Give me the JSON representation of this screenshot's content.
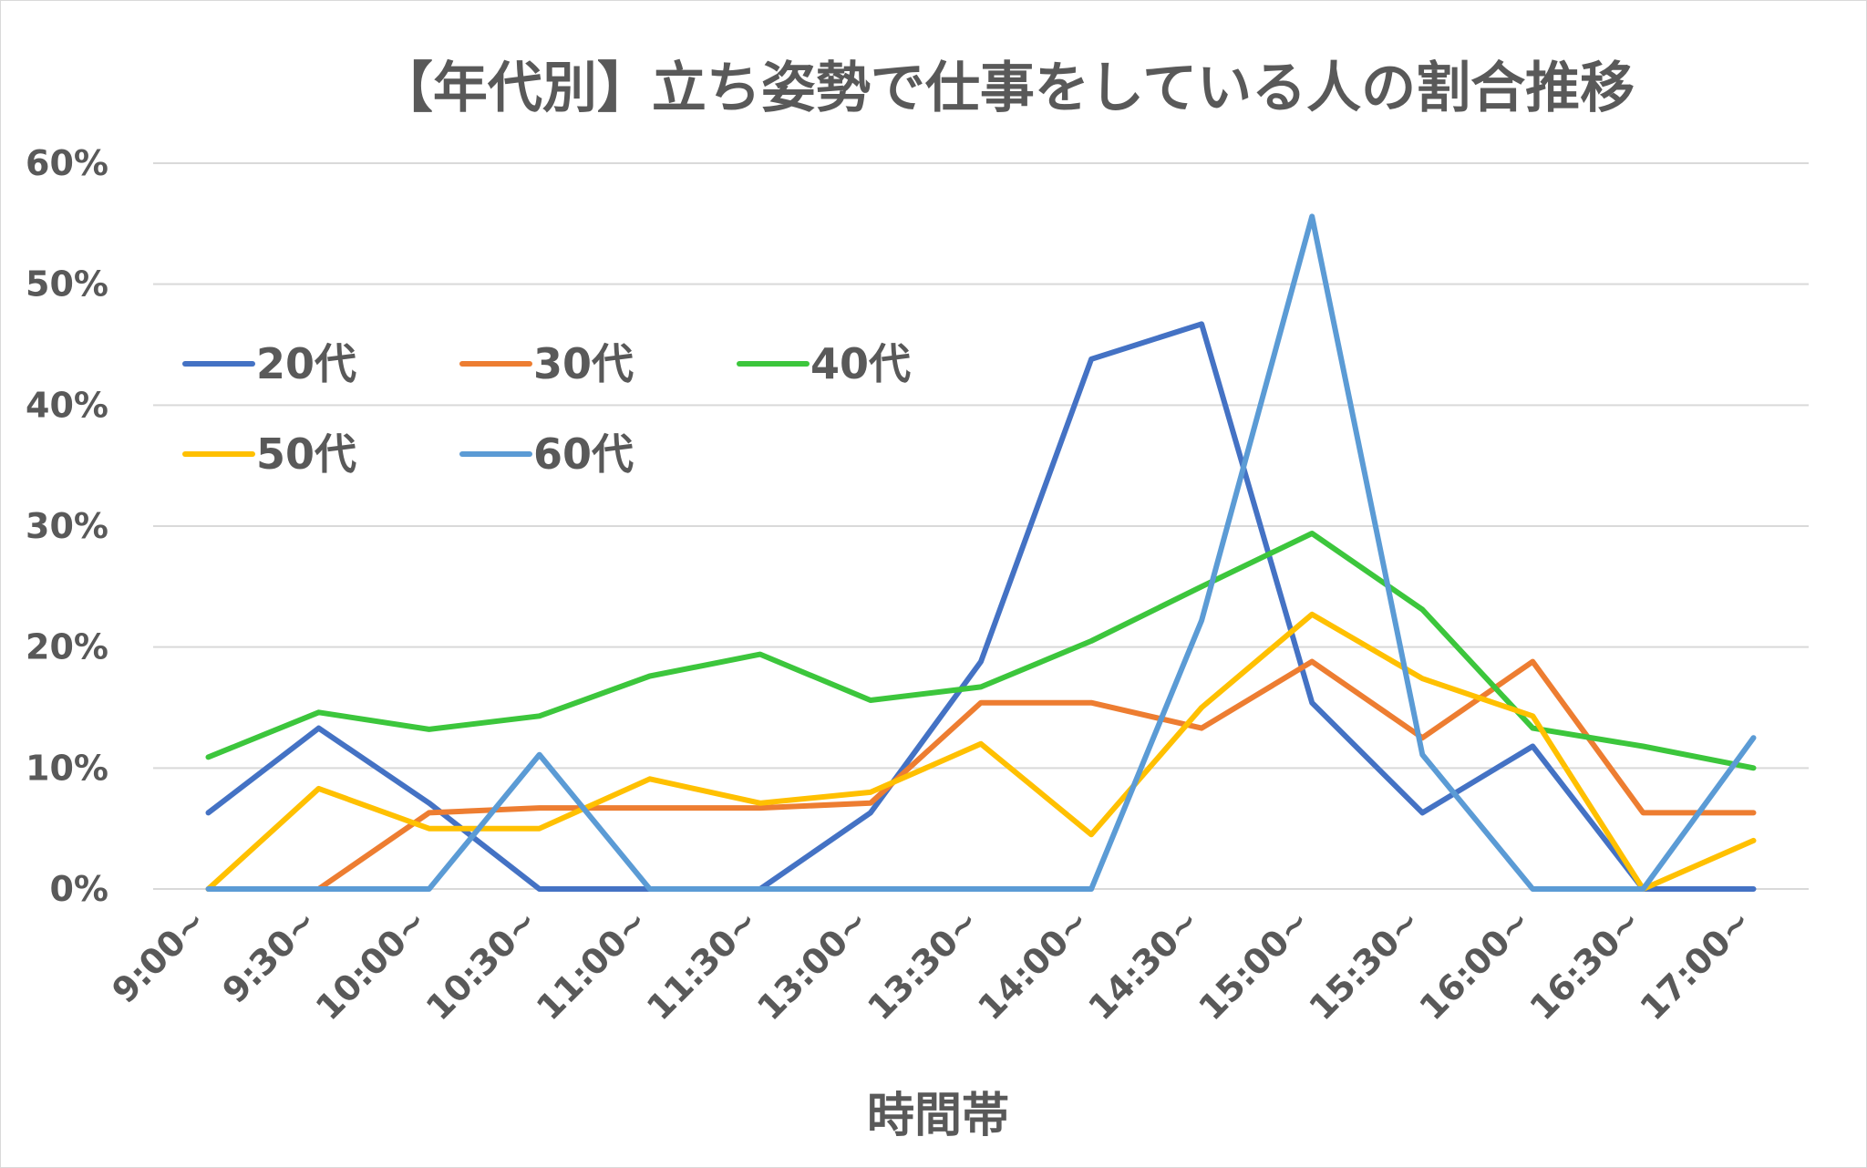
{
  "chart_data": {
    "type": "line",
    "title": "【年代別】立ち姿勢で仕事をしている人の割合推移",
    "xlabel": "時間帯",
    "ylabel": "",
    "ylim": [
      0,
      60
    ],
    "y_ticks": [
      "0%",
      "10%",
      "20%",
      "30%",
      "40%",
      "50%",
      "60%"
    ],
    "y_tick_values": [
      0,
      10,
      20,
      30,
      40,
      50,
      60
    ],
    "grid": true,
    "legend_position": "top-left",
    "categories": [
      "9:00~",
      "9:30~",
      "10:00~",
      "10:30~",
      "11:00~",
      "11:30~",
      "13:00~",
      "13:30~",
      "14:00~",
      "14:30~",
      "15:00~",
      "15:30~",
      "16:00~",
      "16:30~",
      "17:00~"
    ],
    "series": [
      {
        "name": "20代",
        "color": "#4472c4",
        "values": [
          6.3,
          13.3,
          7.1,
          0,
          0,
          0,
          6.3,
          18.8,
          43.8,
          46.7,
          15.4,
          6.3,
          11.8,
          0,
          0
        ]
      },
      {
        "name": "30代",
        "color": "#ed7d31",
        "values": [
          0,
          0,
          6.3,
          6.7,
          6.7,
          6.7,
          7.1,
          15.4,
          15.4,
          13.3,
          18.8,
          12.5,
          18.8,
          6.3,
          6.3
        ]
      },
      {
        "name": "40代",
        "color": "#3cc63c",
        "values": [
          10.9,
          14.6,
          13.2,
          14.3,
          17.6,
          19.4,
          15.6,
          16.7,
          20.5,
          25.0,
          29.4,
          23.1,
          13.3,
          11.8,
          10.0
        ]
      },
      {
        "name": "50代",
        "color": "#ffc000",
        "values": [
          0,
          8.3,
          5.0,
          5.0,
          9.1,
          7.1,
          8.0,
          12.0,
          4.5,
          15.0,
          22.7,
          17.4,
          14.3,
          0,
          4.0
        ]
      },
      {
        "name": "60代",
        "color": "#5b9bd5",
        "values": [
          0,
          0,
          0,
          11.1,
          0,
          0,
          0,
          0,
          0,
          22.2,
          55.6,
          11.1,
          0,
          0,
          12.5
        ]
      }
    ]
  }
}
